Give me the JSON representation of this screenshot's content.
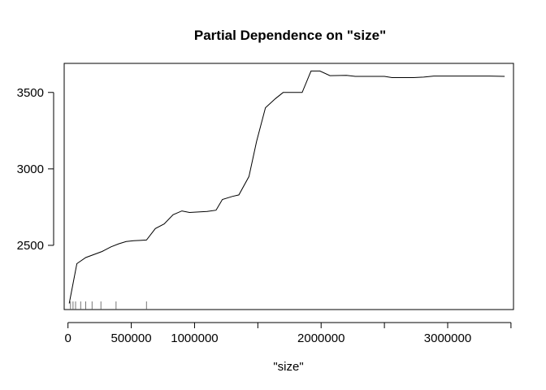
{
  "chart_data": {
    "type": "line",
    "title": "Partial Dependence on \"size\"",
    "xlabel": "\"size\"",
    "ylabel": "",
    "xlim": [
      -30000,
      3520000
    ],
    "ylim": [
      2080000,
      3690000
    ],
    "ylim_units": [
      2080,
      3690
    ],
    "x_ticks": [
      0,
      500000,
      1000000,
      1500000,
      2000000,
      2500000,
      3000000,
      3500000
    ],
    "x_tick_labels": [
      "0",
      "500000",
      "1000000",
      "",
      "2000000",
      "",
      "3000000",
      ""
    ],
    "y_ticks": [
      2500,
      3000,
      3500
    ],
    "y_tick_labels": [
      "2500",
      "3000",
      "3500"
    ],
    "grid": false,
    "series": [
      {
        "x": [
          10000,
          70000,
          140000,
          270000,
          340000,
          400000,
          460000,
          520000,
          570000,
          620000,
          690000,
          760000,
          830000,
          900000,
          960000,
          1100000,
          1170000,
          1220000,
          1300000,
          1350000,
          1430000,
          1490000,
          1560000,
          1640000,
          1700000,
          1850000,
          1920000,
          1990000,
          2070000,
          2200000,
          2270000,
          2500000,
          2560000,
          2730000,
          2810000,
          2890000,
          3330000,
          3450000
        ],
        "y": [
          2120,
          2380,
          2420,
          2460,
          2490,
          2510,
          2525,
          2530,
          2532,
          2535,
          2610,
          2640,
          2700,
          2725,
          2715,
          2722,
          2730,
          2800,
          2820,
          2830,
          2950,
          3180,
          3400,
          3460,
          3500,
          3500,
          3640,
          3640,
          3610,
          3612,
          3605,
          3605,
          3597,
          3597,
          3600,
          3607,
          3607,
          3605
        ]
      }
    ],
    "rug": [
      20000,
      40000,
      60000,
      100000,
      140000,
      190000,
      260000,
      380000,
      620000
    ]
  }
}
